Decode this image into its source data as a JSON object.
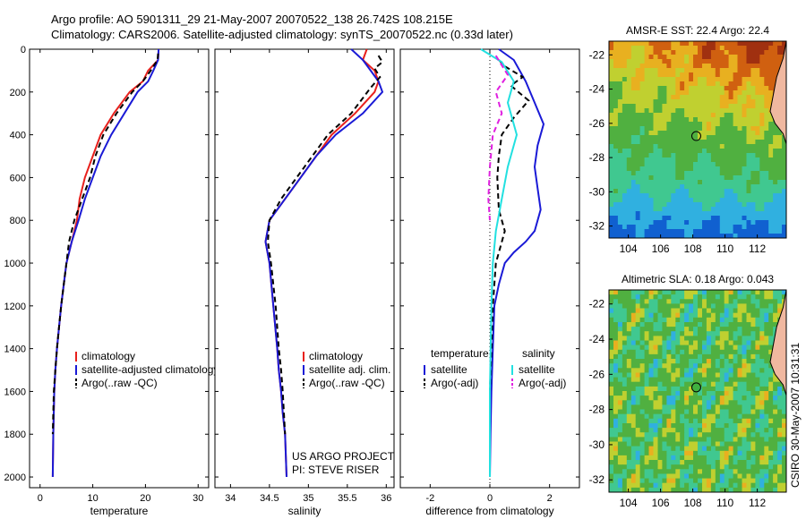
{
  "header": {
    "line1": "Argo profile: AO 5901311_29 21-May-2007 20070522_138 26.742S 108.215E",
    "line2": "Climatology: CARS2006. Satellite-adjusted climatology: synTS_20070522.nc (0.33d later)"
  },
  "side_text": "CSIRO 30-May-2007 10:31:31",
  "colors": {
    "climatology": "#e8201c",
    "satellite": "#1a1ad6",
    "argo": "#000000",
    "salinity_satellite": "#22e0e0",
    "salinity_argo": "#e020e0"
  },
  "chart_data": [
    {
      "type": "line",
      "name": "temperature-profile",
      "xlabel": "temperature",
      "ylabel": "",
      "xlim": [
        -2,
        32
      ],
      "ylim": [
        2050,
        0
      ],
      "xticks": [
        0,
        10,
        20,
        30
      ],
      "yticks": [
        0,
        200,
        400,
        600,
        800,
        1000,
        1200,
        1400,
        1600,
        1800,
        2000
      ],
      "legend": [
        "climatology",
        "satellite-adjusted climatology",
        "Argo(..raw -QC)"
      ],
      "series": [
        {
          "name": "climatology",
          "style": "solid",
          "color": "#e8201c",
          "x": [
            22.5,
            22.4,
            20.5,
            19.5,
            17,
            14,
            11.5,
            10,
            8.5,
            7.5,
            7,
            6,
            5,
            4.5,
            4,
            3.6,
            3.2,
            2.9,
            2.7,
            2.5,
            2.4
          ],
          "y": [
            0,
            50,
            100,
            150,
            200,
            300,
            400,
            500,
            600,
            700,
            800,
            900,
            1000,
            1100,
            1200,
            1300,
            1400,
            1500,
            1600,
            1800,
            2000
          ]
        },
        {
          "name": "satellite-adjusted climatology",
          "style": "solid",
          "color": "#1a1ad6",
          "x": [
            22.5,
            22.4,
            21.5,
            20.5,
            18.5,
            16,
            13.5,
            11.5,
            10,
            8.5,
            7.3,
            6,
            5,
            4.5,
            4,
            3.6,
            3.2,
            2.9,
            2.7,
            2.5,
            2.4
          ],
          "y": [
            0,
            50,
            100,
            150,
            200,
            300,
            400,
            500,
            600,
            700,
            800,
            900,
            1000,
            1100,
            1200,
            1300,
            1400,
            1500,
            1600,
            1800,
            2000
          ]
        },
        {
          "name": "Argo(..raw -QC)",
          "style": "dashed",
          "color": "#000000",
          "x": [
            22.4,
            22.3,
            21,
            19.5,
            17.5,
            14.5,
            12,
            10.5,
            9.5,
            8,
            6.5,
            5.5,
            5,
            4.5,
            4,
            3.6,
            3.2,
            2.9,
            2.6,
            2.4
          ],
          "y": [
            20,
            50,
            100,
            150,
            200,
            300,
            400,
            500,
            600,
            700,
            800,
            900,
            1000,
            1100,
            1200,
            1300,
            1400,
            1500,
            1600,
            1800
          ]
        }
      ]
    },
    {
      "type": "line",
      "name": "salinity-profile",
      "xlabel": "salinity",
      "ylabel": "",
      "xlim": [
        33.8,
        36.1
      ],
      "ylim": [
        2050,
        0
      ],
      "xticks": [
        34,
        34.5,
        35,
        35.5,
        36
      ],
      "legend": [
        "climatology",
        "satellite adj. clim.",
        "Argo(..raw -QC)"
      ],
      "annotations": [
        "US ARGO PROJECT",
        "PI: STEVE RISER"
      ],
      "series": [
        {
          "name": "climatology",
          "style": "solid",
          "color": "#e8201c",
          "x": [
            35.75,
            35.7,
            35.85,
            35.9,
            35.85,
            35.6,
            35.3,
            35.1,
            34.9,
            34.7,
            34.5,
            34.45,
            34.5,
            34.55,
            34.6,
            34.62,
            34.65,
            34.67,
            34.7,
            34.72
          ],
          "y": [
            0,
            50,
            100,
            150,
            200,
            300,
            400,
            500,
            600,
            700,
            800,
            900,
            1000,
            1200,
            1400,
            1500,
            1600,
            1700,
            1800,
            2000
          ]
        },
        {
          "name": "satellite adj. clim.",
          "style": "solid",
          "color": "#1a1ad6",
          "x": [
            35.55,
            35.7,
            35.8,
            35.9,
            35.95,
            35.7,
            35.35,
            35.1,
            34.9,
            34.7,
            34.5,
            34.45,
            34.5,
            34.55,
            34.6,
            34.62,
            34.65,
            34.67,
            34.7,
            34.72
          ],
          "y": [
            0,
            50,
            100,
            150,
            200,
            300,
            400,
            500,
            600,
            700,
            800,
            900,
            1000,
            1200,
            1400,
            1500,
            1600,
            1700,
            1800,
            2000
          ]
        },
        {
          "name": "Argo(..raw -QC)",
          "style": "dashed",
          "color": "#000000",
          "x": [
            35.9,
            35.95,
            35.85,
            35.92,
            35.8,
            35.55,
            35.25,
            35.05,
            34.85,
            34.65,
            34.5,
            34.48,
            34.52,
            34.58,
            34.62,
            34.65,
            34.67,
            34.7
          ],
          "y": [
            30,
            60,
            90,
            130,
            180,
            300,
            400,
            500,
            600,
            700,
            800,
            900,
            1000,
            1200,
            1400,
            1500,
            1600,
            1800
          ]
        }
      ]
    },
    {
      "type": "line",
      "name": "difference-profile",
      "xlabel": "difference from climatology",
      "ylabel": "",
      "xlim": [
        -3,
        3
      ],
      "ylim": [
        2050,
        0
      ],
      "xticks": [
        -2,
        0,
        2
      ],
      "legend_groups": [
        {
          "title": "temperature",
          "entries": [
            "satellite",
            "Argo(-adj)"
          ]
        },
        {
          "title": "salinity",
          "entries": [
            "satellite",
            "Argo(-adj)"
          ]
        }
      ],
      "series": [
        {
          "name": "temperature satellite",
          "style": "solid",
          "color": "#1a1ad6",
          "x": [
            0.3,
            0.8,
            1.2,
            1.5,
            1.8,
            1.6,
            1.5,
            1.6,
            1.7,
            1.5,
            1.2,
            0.8,
            0.5,
            0.3,
            0.15,
            0.1,
            0.05,
            0.02,
            0.0
          ],
          "y": [
            0,
            50,
            150,
            250,
            350,
            450,
            550,
            650,
            750,
            850,
            900,
            950,
            1000,
            1100,
            1200,
            1400,
            1600,
            1800,
            2000
          ]
        },
        {
          "name": "temperature Argo(-adj)",
          "style": "dashed",
          "color": "#000000",
          "x": [
            0.3,
            0.5,
            1.1,
            0.7,
            1.3,
            0.8,
            0.4,
            0.3,
            0.25,
            0.3,
            0.5,
            0.2,
            0.15,
            0.1,
            0.05,
            0.0,
            0.0
          ],
          "y": [
            50,
            80,
            130,
            170,
            240,
            320,
            400,
            500,
            600,
            750,
            850,
            1000,
            1100,
            1200,
            1400,
            1600,
            1800
          ]
        },
        {
          "name": "salinity satellite",
          "style": "solid",
          "color": "#22e0e0",
          "x": [
            -0.3,
            0.4,
            0.8,
            0.6,
            0.9,
            0.6,
            0.4,
            0.2,
            0.1,
            0.05,
            0.0,
            0.0
          ],
          "y": [
            0,
            60,
            150,
            250,
            400,
            550,
            700,
            850,
            1000,
            1200,
            1600,
            2000
          ]
        },
        {
          "name": "salinity Argo(-adj)",
          "style": "dashed",
          "color": "#e020e0",
          "x": [
            0.2,
            0.6,
            0.2,
            0.4,
            0.1,
            0.0,
            -0.05,
            0.0
          ],
          "y": [
            30,
            120,
            200,
            300,
            400,
            550,
            700,
            800
          ]
        }
      ]
    },
    {
      "type": "heatmap",
      "name": "sst-map",
      "title": "AMSR-E SST: 22.4 Argo: 22.4",
      "xticks": [
        104,
        106,
        108,
        110,
        112
      ],
      "yticks": [
        -22,
        -24,
        -26,
        -28,
        -30,
        -32
      ],
      "xlim": [
        102.8,
        113.8
      ],
      "ylim": [
        -32.7,
        -21.2
      ],
      "marker": {
        "lon": 108.215,
        "lat": -26.742
      }
    },
    {
      "type": "heatmap",
      "name": "sla-map",
      "title": "Altimetric SLA: 0.18 Argo: 0.043",
      "xticks": [
        104,
        106,
        108,
        110,
        112
      ],
      "yticks": [
        -22,
        -24,
        -26,
        -28,
        -30,
        -32
      ],
      "xlim": [
        102.8,
        113.8
      ],
      "ylim": [
        -32.7,
        -21.2
      ],
      "marker": {
        "lon": 108.215,
        "lat": -26.742
      }
    }
  ]
}
